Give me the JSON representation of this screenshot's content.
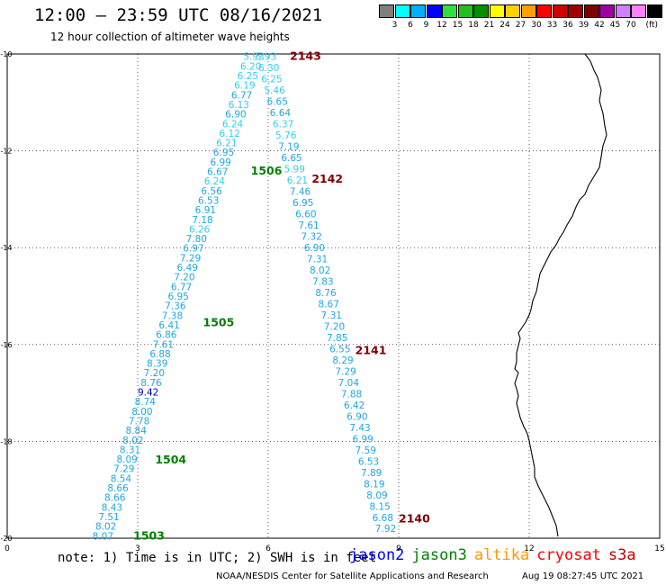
{
  "header": {
    "title": "12:00 — 23:59 UTC 08/16/2021",
    "subtitle": "12 hour collection of altimeter wave heights"
  },
  "colorbar": {
    "colors": [
      "#7f7f7f",
      "#00ffff",
      "#00b0ff",
      "#0000ff",
      "#30e040",
      "#20c020",
      "#009000",
      "#ffff00",
      "#ffd000",
      "#ffa000",
      "#ff0000",
      "#d00000",
      "#a00000",
      "#800000",
      "#a000a0",
      "#d080ff",
      "#ff80ff",
      "#000000"
    ],
    "labels": [
      "3",
      "6",
      "9",
      "12",
      "15",
      "18",
      "21",
      "24",
      "27",
      "30",
      "33",
      "36",
      "39",
      "42",
      "45",
      "70"
    ],
    "unit": "(ft)"
  },
  "axes": {
    "x_ticks": [
      "0",
      "3",
      "6",
      "9",
      "12",
      "15"
    ],
    "y_ticks": [
      "-10",
      "-12",
      "-14",
      "-16",
      "-18",
      "-20"
    ],
    "xlim": [
      0,
      15
    ],
    "ylim": [
      -20,
      -10
    ],
    "grid": "dotted"
  },
  "tracks": [
    {
      "pass": "1503",
      "pass_color": "#008000",
      "pass_lon": 2.9,
      "pass_lat": -19.95
    },
    {
      "pass": "1504",
      "pass_color": "#008000",
      "pass_lon": 3.4,
      "pass_lat": -18.38
    },
    {
      "pass": "1505",
      "pass_color": "#008000",
      "pass_lon": 4.5,
      "pass_lat": -15.55
    },
    {
      "pass": "1506",
      "pass_color": "#008000",
      "pass_lon": 5.6,
      "pass_lat": -12.42
    },
    {
      "pass": "2140",
      "pass_color": "#800000",
      "pass_lon": 9.0,
      "pass_lat": -19.6
    },
    {
      "pass": "2141",
      "pass_color": "#800000",
      "pass_lon": 8.0,
      "pass_lat": -16.12
    },
    {
      "pass": "2142",
      "pass_color": "#800000",
      "pass_lon": 7.0,
      "pass_lat": -12.58
    },
    {
      "pass": "2143",
      "pass_color": "#800000",
      "pass_lon": 6.5,
      "pass_lat": -10.05
    }
  ],
  "wave_heights_left": [
    "5.93",
    "6.20",
    "6.25",
    "6.19",
    "6.77",
    "6.13",
    "6.90",
    "6.24",
    "6.12",
    "6.21",
    "6.95",
    "6.99",
    "6.67",
    "6.24",
    "6.56",
    "6.53",
    "6.91",
    "7.18",
    "6.26",
    "7.80",
    "6.97",
    "7.29",
    "6.49",
    "7.20",
    "6.77",
    "6.95",
    "7.36",
    "7.38",
    "6.41",
    "6.86",
    "7.61",
    "6.88",
    "8.39",
    "7.20",
    "8.76",
    "9.42",
    "8.74",
    "8.00",
    "7.78",
    "8.84",
    "8.02",
    "8.31",
    "8.09",
    "7.29",
    "8.54",
    "8.66",
    "8.66",
    "8.43",
    "7.51",
    "8.02",
    "8.07"
  ],
  "wave_heights_right": [
    "5.93",
    "6.30",
    "6.25",
    "5.46",
    "6.65",
    "6.64",
    "6.37",
    "5.76",
    "7.19",
    "6.65",
    "5.99",
    "6.21",
    "7.46",
    "6.95",
    "6.60",
    "7.61",
    "7.32",
    "6.90",
    "7.31",
    "8.02",
    "7.83",
    "8.76",
    "8.67",
    "7.31",
    "7.20",
    "7.85",
    "6.55",
    "8.29",
    "7.29",
    "7.04",
    "7.88",
    "6.42",
    "6.90",
    "7.43",
    "6.99",
    "7.59",
    "6.53",
    "7.89",
    "8.19",
    "8.09",
    "8.15",
    "6.68",
    "7.92"
  ],
  "footer": {
    "note": "note: 1) Time is in UTC; 2) SWH is in feet",
    "legend": [
      {
        "label": "jason2",
        "color": "#0000ff"
      },
      {
        "label": "jason3",
        "color": "#008000"
      },
      {
        "label": "altika",
        "color": "#ff9900"
      },
      {
        "label": "cryosat",
        "color": "#ff0000"
      },
      {
        "label": "s3a",
        "color": "#c00000"
      }
    ],
    "credit": "NOAA/NESDIS Center for Satellite Applications and Research",
    "timestamp": "Aug 19 08:27:45 UTC 2021"
  }
}
